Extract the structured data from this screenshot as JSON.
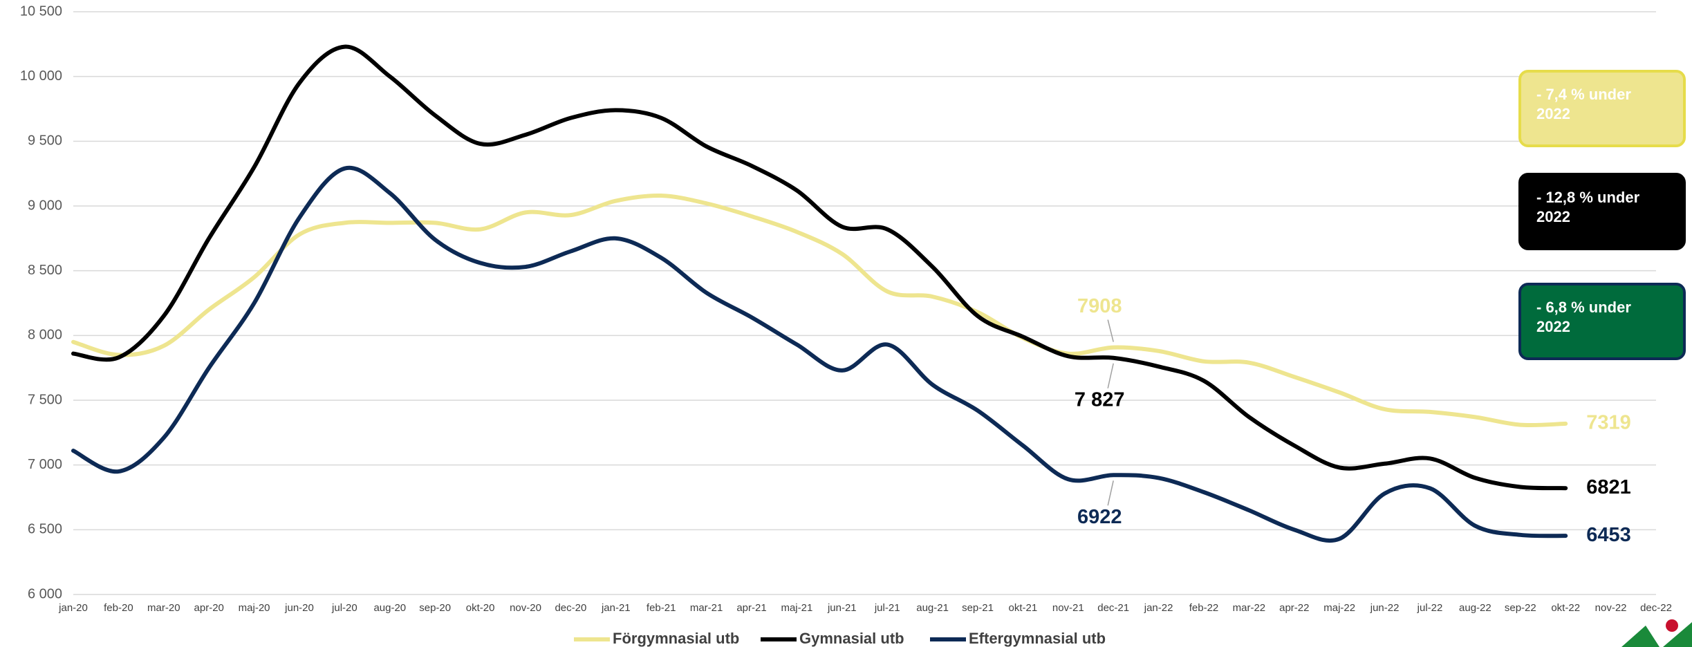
{
  "chart_data": {
    "type": "line",
    "categories": [
      "jan-20",
      "feb-20",
      "mar-20",
      "apr-20",
      "maj-20",
      "jun-20",
      "jul-20",
      "aug-20",
      "sep-20",
      "okt-20",
      "nov-20",
      "dec-20",
      "jan-21",
      "feb-21",
      "mar-21",
      "apr-21",
      "maj-21",
      "jun-21",
      "jul-21",
      "aug-21",
      "sep-21",
      "okt-21",
      "nov-21",
      "dec-21",
      "jan-22",
      "feb-22",
      "mar-22",
      "apr-22",
      "maj-22",
      "jun-22",
      "jul-22",
      "aug-22",
      "sep-22",
      "okt-22",
      "nov-22",
      "dec-22"
    ],
    "series": [
      {
        "name": "Förgymnasial utb",
        "color": "#eee58f",
        "values": [
          7950,
          7850,
          7920,
          8200,
          8450,
          8780,
          8870,
          8870,
          8870,
          8820,
          8950,
          8930,
          9040,
          9080,
          9020,
          8920,
          8800,
          8630,
          8340,
          8300,
          8180,
          7980,
          7860,
          7908,
          7880,
          7800,
          7790,
          7680,
          7560,
          7430,
          7410,
          7370,
          7310,
          7319,
          null,
          null
        ],
        "value_labels": [
          null,
          null,
          null,
          null,
          null,
          null,
          null,
          null,
          null,
          null,
          null,
          null,
          null,
          null,
          null,
          null,
          null,
          null,
          null,
          null,
          null,
          null,
          null,
          "7908",
          null,
          null,
          null,
          null,
          null,
          null,
          null,
          null,
          null,
          "7319",
          null,
          null
        ]
      },
      {
        "name": "Gymnasial utb",
        "color": "#000000",
        "values": [
          7860,
          7830,
          8150,
          8750,
          9300,
          9950,
          10230,
          10000,
          9700,
          9480,
          9550,
          9680,
          9740,
          9680,
          9460,
          9310,
          9120,
          8840,
          8820,
          8530,
          8150,
          7990,
          7840,
          7827,
          7760,
          7650,
          7370,
          7150,
          6980,
          7010,
          7050,
          6900,
          6830,
          6821,
          null,
          null
        ],
        "value_labels": [
          null,
          null,
          null,
          null,
          null,
          null,
          null,
          null,
          null,
          null,
          null,
          null,
          null,
          null,
          null,
          null,
          null,
          null,
          null,
          null,
          null,
          null,
          null,
          "7 827",
          null,
          null,
          null,
          null,
          null,
          null,
          null,
          null,
          null,
          "6821",
          null,
          null
        ]
      },
      {
        "name": "Eftergymnasial utb",
        "color": "#0d2a55",
        "values": [
          7110,
          6950,
          7210,
          7750,
          8250,
          8910,
          9290,
          9100,
          8740,
          8560,
          8530,
          8650,
          8750,
          8600,
          8330,
          8140,
          7930,
          7730,
          7930,
          7620,
          7420,
          7150,
          6890,
          6922,
          6900,
          6790,
          6650,
          6500,
          6430,
          6780,
          6820,
          6530,
          6460,
          6453,
          null,
          null
        ],
        "value_labels": [
          null,
          null,
          null,
          null,
          null,
          null,
          null,
          null,
          null,
          null,
          null,
          null,
          null,
          null,
          null,
          null,
          null,
          null,
          null,
          null,
          null,
          null,
          null,
          "6922",
          null,
          null,
          null,
          null,
          null,
          null,
          null,
          null,
          null,
          "6453",
          null,
          null
        ]
      }
    ],
    "ylim": [
      6000,
      10500
    ],
    "yticks": [
      {
        "value": 6000,
        "label": "6 000"
      },
      {
        "value": 6500,
        "label": "6 500"
      },
      {
        "value": 7000,
        "label": "7 000"
      },
      {
        "value": 7500,
        "label": "7 500"
      },
      {
        "value": 8000,
        "label": "8 000"
      },
      {
        "value": 8500,
        "label": "8 500"
      },
      {
        "value": 9000,
        "label": "9 000"
      },
      {
        "value": 9500,
        "label": "9 500"
      },
      {
        "value": 10000,
        "label": "10 000"
      },
      {
        "value": 10500,
        "label": "10 500"
      }
    ],
    "grid": true,
    "legend": "bottom",
    "annotations": [
      {
        "text": "- 7,4 % under 2022",
        "color": "#eee58f",
        "border": "#e6dc4a"
      },
      {
        "text": "- 12,8 % under 2022",
        "color": "#000000",
        "border": "#000000"
      },
      {
        "text": "- 6,8 % under 2022",
        "color": "#006b3c",
        "border": "#0d2a55"
      }
    ]
  }
}
